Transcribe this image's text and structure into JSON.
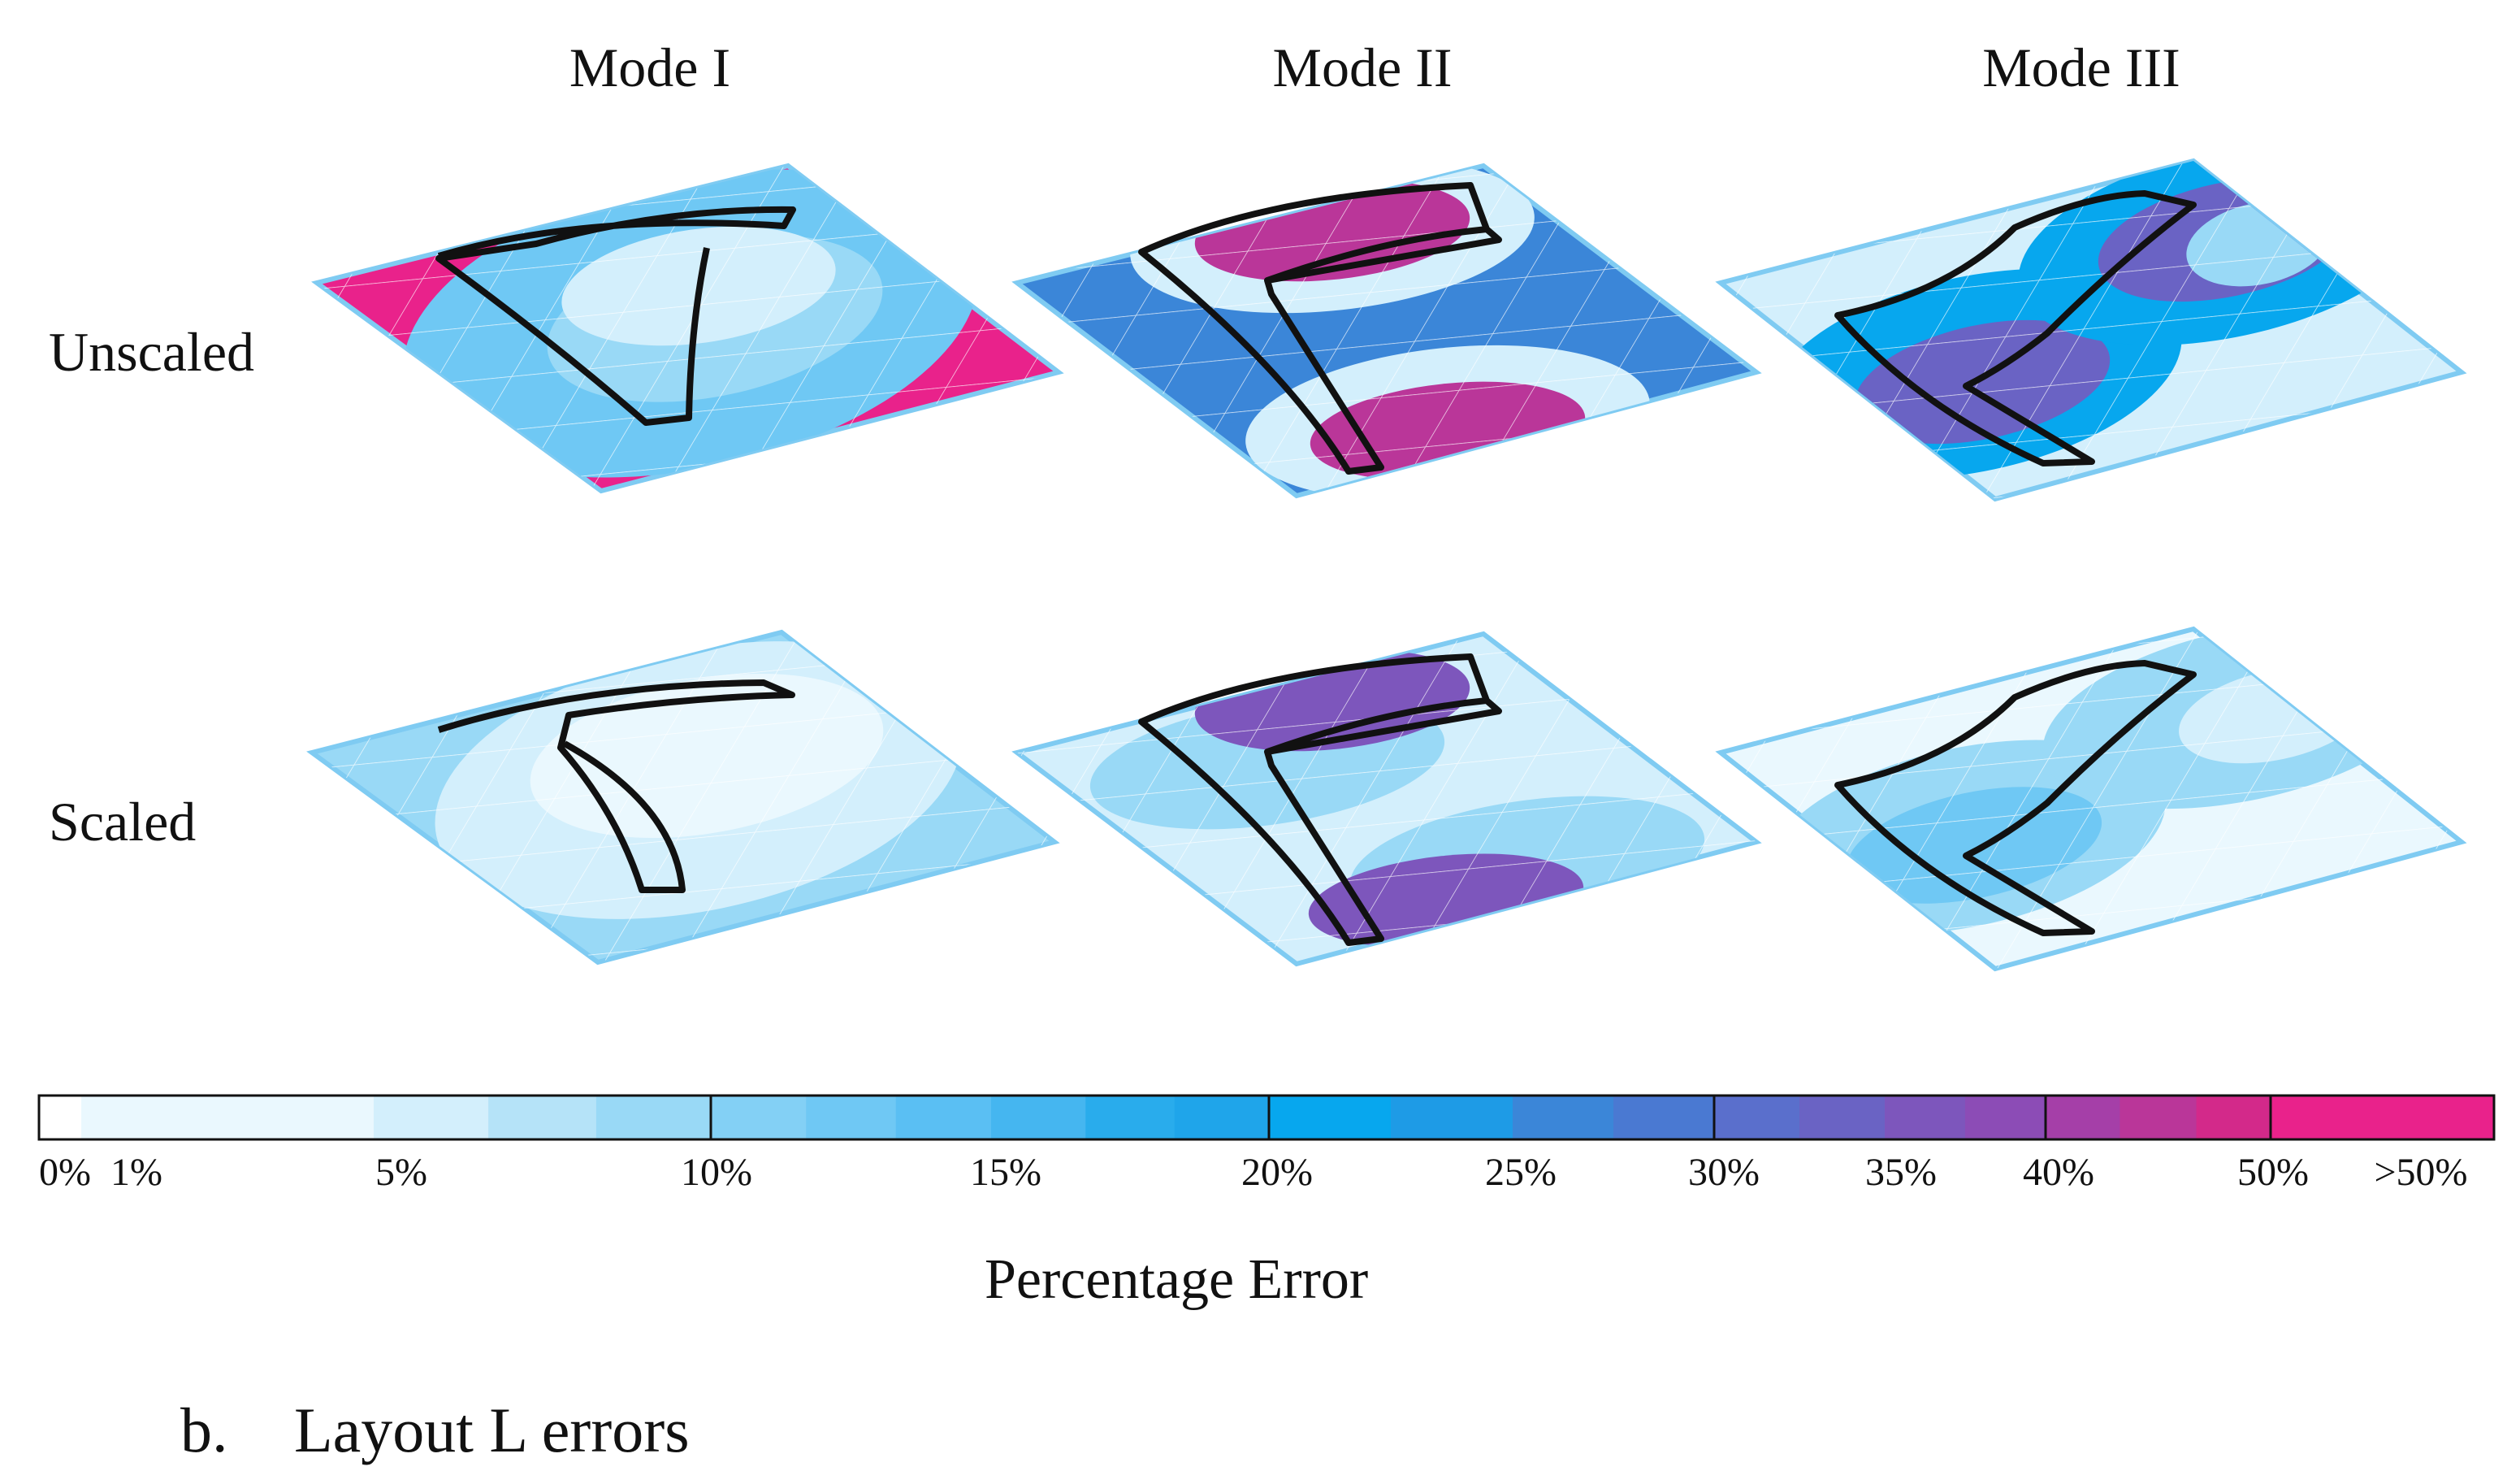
{
  "column_titles": [
    "Mode I",
    "Mode II",
    "Mode III"
  ],
  "row_labels": [
    "Unscaled",
    "Scaled"
  ],
  "colorbar": {
    "title": "Percentage Error",
    "tick_labels": [
      "0%",
      "1%",
      "5%",
      "10%",
      "15%",
      "20%",
      "25%",
      "30%",
      "35%",
      "40%",
      "50%",
      ">50%"
    ],
    "colors": [
      "#ffffff",
      "#eaf8fe",
      "#d3effc",
      "#b5e3f8",
      "#99d9f6",
      "#83d0f5",
      "#6fc8f4",
      "#5abff3",
      "#45b6f0",
      "#29acec",
      "#1fa5ea",
      "#07a7ee",
      "#1e9be6",
      "#3b86d8",
      "#4a79d2",
      "#5a6fcc",
      "#6a63c4",
      "#7d56bc",
      "#8c4cb6",
      "#a53fa8",
      "#ba3699",
      "#d3298a",
      "#e9228b"
    ],
    "ticks_percent": [
      10,
      20,
      30,
      40,
      50
    ]
  },
  "palette": {
    "edge": "#7fcbf2",
    "mesh": "#ffffff",
    "outline": "#111111"
  },
  "caption": {
    "letter": "b.",
    "text": "Layout L errors"
  }
}
